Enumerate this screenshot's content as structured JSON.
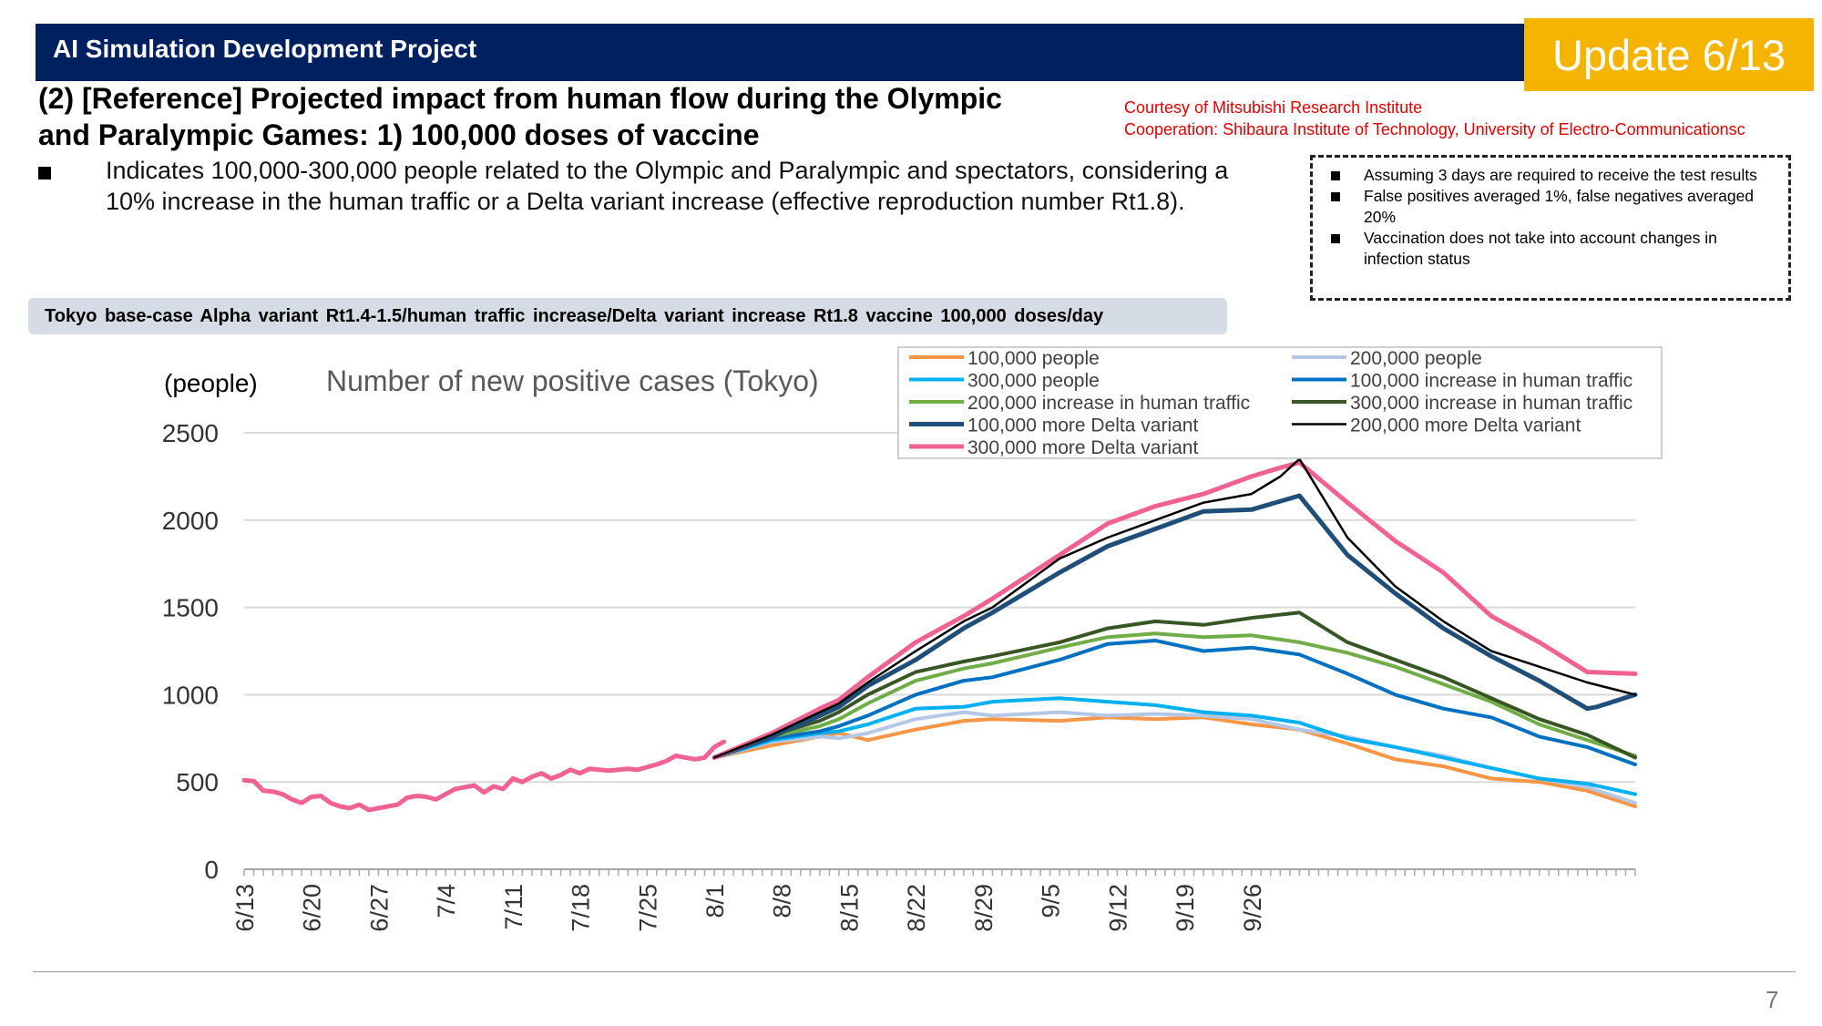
{
  "header": {
    "project_title": "AI Simulation Development Project",
    "update_badge": "Update 6/13",
    "subtitle_line1": "(2) [Reference] Projected impact from human flow during the Olympic",
    "subtitle_line2": "and Paralympic Games: 1) 100,000 doses of vaccine",
    "courtesy_line1": "Courtesy of Mitsubishi Research Institute",
    "courtesy_line2": "Cooperation: Shibaura Institute of Technology, University of Electro-Communicationsc"
  },
  "description": "Indicates 100,000-300,000 people related to the Olympic and Paralympic and spectators, considering a 10% increase in the human traffic or a Delta variant increase (effective reproduction number Rt1.8).",
  "notes": [
    "Assuming 3 days are required to receive the test results",
    "False positives averaged 1%, false negatives averaged 20%",
    "Vaccination does not take into account changes in infection status"
  ],
  "banner": "Tokyo base-case Alpha variant Rt1.4-1.5/human traffic increase/Delta variant increase Rt1.8 vaccine 100,000 doses/day",
  "page_number": "7",
  "colors": {
    "header_bg": "#002060",
    "update_bg": "#f5b400",
    "courtesy_text": "#e00000",
    "base_line": "#f06292"
  },
  "chart_data": {
    "type": "line",
    "title": "Number of new positive cases (Tokyo)",
    "ylabel": "(people)",
    "xlabel": "",
    "ylim": [
      0,
      2500
    ],
    "yticks": [
      "0",
      "500",
      "1000",
      "1500",
      "2000",
      "2500"
    ],
    "xtick_labels": [
      "6/13",
      "6/20",
      "6/27",
      "7/4",
      "7/11",
      "7/18",
      "7/25",
      "8/1",
      "8/8",
      "8/15",
      "8/22",
      "8/29",
      "9/5",
      "9/12",
      "9/19",
      "9/26"
    ],
    "grid": true,
    "legend_position": "top-right",
    "x_start": "6/13",
    "baseline": [
      510,
      505,
      450,
      445,
      430,
      400,
      380,
      415,
      420,
      380,
      360,
      350,
      370,
      340,
      350,
      360,
      370,
      410,
      420,
      415,
      400,
      430,
      460,
      470,
      480,
      440,
      475,
      460,
      520,
      500,
      530,
      550,
      520,
      540,
      570,
      550,
      575,
      570,
      565,
      570,
      575,
      570,
      585,
      600,
      620,
      650,
      640,
      630,
      640,
      700,
      730
    ],
    "series": [
      {
        "name": "100,000 people",
        "color": "#f79646",
        "width": 4,
        "points": [
          [
            49,
            640
          ],
          [
            55,
            710
          ],
          [
            60,
            760
          ],
          [
            62,
            780
          ],
          [
            65,
            740
          ],
          [
            70,
            800
          ],
          [
            75,
            850
          ],
          [
            78,
            860
          ],
          [
            85,
            850
          ],
          [
            90,
            870
          ],
          [
            95,
            860
          ],
          [
            100,
            870
          ],
          [
            105,
            830
          ],
          [
            110,
            800
          ],
          [
            115,
            720
          ],
          [
            120,
            630
          ],
          [
            125,
            590
          ],
          [
            130,
            520
          ],
          [
            135,
            500
          ],
          [
            140,
            450
          ],
          [
            145,
            360
          ]
        ]
      },
      {
        "name": "200,000 people",
        "color": "#b4c7e7",
        "width": 4,
        "points": [
          [
            49,
            640
          ],
          [
            55,
            730
          ],
          [
            60,
            760
          ],
          [
            62,
            750
          ],
          [
            65,
            780
          ],
          [
            70,
            860
          ],
          [
            75,
            900
          ],
          [
            78,
            880
          ],
          [
            85,
            900
          ],
          [
            90,
            880
          ],
          [
            95,
            890
          ],
          [
            100,
            880
          ],
          [
            105,
            860
          ],
          [
            110,
            800
          ],
          [
            115,
            760
          ],
          [
            120,
            700
          ],
          [
            125,
            650
          ],
          [
            130,
            580
          ],
          [
            135,
            520
          ],
          [
            140,
            470
          ],
          [
            145,
            380
          ]
        ]
      },
      {
        "name": "300,000 people",
        "color": "#00b0f0",
        "width": 4,
        "points": [
          [
            49,
            640
          ],
          [
            55,
            740
          ],
          [
            60,
            780
          ],
          [
            62,
            790
          ],
          [
            65,
            830
          ],
          [
            70,
            920
          ],
          [
            75,
            930
          ],
          [
            78,
            960
          ],
          [
            85,
            980
          ],
          [
            90,
            960
          ],
          [
            95,
            940
          ],
          [
            100,
            900
          ],
          [
            105,
            880
          ],
          [
            110,
            840
          ],
          [
            115,
            750
          ],
          [
            120,
            700
          ],
          [
            125,
            640
          ],
          [
            130,
            580
          ],
          [
            135,
            520
          ],
          [
            140,
            490
          ],
          [
            145,
            430
          ]
        ]
      },
      {
        "name": "100,000 increase in human traffic",
        "color": "#0070c0",
        "width": 4,
        "points": [
          [
            49,
            640
          ],
          [
            55,
            750
          ],
          [
            60,
            790
          ],
          [
            62,
            820
          ],
          [
            65,
            880
          ],
          [
            70,
            1000
          ],
          [
            75,
            1080
          ],
          [
            78,
            1100
          ],
          [
            85,
            1200
          ],
          [
            90,
            1290
          ],
          [
            95,
            1310
          ],
          [
            100,
            1250
          ],
          [
            105,
            1270
          ],
          [
            110,
            1230
          ],
          [
            115,
            1120
          ],
          [
            120,
            1000
          ],
          [
            125,
            920
          ],
          [
            130,
            870
          ],
          [
            135,
            760
          ],
          [
            140,
            700
          ],
          [
            145,
            600
          ]
        ]
      },
      {
        "name": "200,000 increase in human traffic",
        "color": "#70ad47",
        "width": 4,
        "points": [
          [
            49,
            640
          ],
          [
            55,
            760
          ],
          [
            60,
            820
          ],
          [
            62,
            860
          ],
          [
            65,
            950
          ],
          [
            70,
            1080
          ],
          [
            75,
            1150
          ],
          [
            78,
            1180
          ],
          [
            85,
            1270
          ],
          [
            90,
            1330
          ],
          [
            95,
            1350
          ],
          [
            100,
            1330
          ],
          [
            105,
            1340
          ],
          [
            110,
            1300
          ],
          [
            115,
            1240
          ],
          [
            120,
            1160
          ],
          [
            125,
            1060
          ],
          [
            130,
            960
          ],
          [
            135,
            830
          ],
          [
            140,
            740
          ],
          [
            145,
            650
          ]
        ]
      },
      {
        "name": "300,000 increase in human traffic",
        "color": "#375623",
        "width": 4,
        "points": [
          [
            49,
            640
          ],
          [
            55,
            770
          ],
          [
            60,
            850
          ],
          [
            62,
            900
          ],
          [
            65,
            1000
          ],
          [
            70,
            1130
          ],
          [
            75,
            1190
          ],
          [
            78,
            1220
          ],
          [
            85,
            1300
          ],
          [
            90,
            1380
          ],
          [
            95,
            1420
          ],
          [
            100,
            1400
          ],
          [
            105,
            1440
          ],
          [
            110,
            1470
          ],
          [
            115,
            1300
          ],
          [
            120,
            1200
          ],
          [
            125,
            1100
          ],
          [
            130,
            980
          ],
          [
            135,
            860
          ],
          [
            140,
            770
          ],
          [
            145,
            640
          ]
        ]
      },
      {
        "name": "100,000 more Delta variant",
        "color": "#1f4e79",
        "width": 5,
        "points": [
          [
            49,
            640
          ],
          [
            55,
            760
          ],
          [
            60,
            880
          ],
          [
            62,
            930
          ],
          [
            65,
            1050
          ],
          [
            70,
            1200
          ],
          [
            75,
            1380
          ],
          [
            78,
            1470
          ],
          [
            85,
            1700
          ],
          [
            90,
            1850
          ],
          [
            95,
            1950
          ],
          [
            100,
            2050
          ],
          [
            105,
            2060
          ],
          [
            110,
            2140
          ],
          [
            115,
            1800
          ],
          [
            120,
            1580
          ],
          [
            125,
            1380
          ],
          [
            130,
            1220
          ],
          [
            135,
            1080
          ],
          [
            140,
            920
          ],
          [
            141,
            930
          ],
          [
            145,
            1000
          ]
        ]
      },
      {
        "name": "200,000 more Delta variant",
        "color": "#000000",
        "width": 2.5,
        "points": [
          [
            49,
            640
          ],
          [
            55,
            770
          ],
          [
            60,
            900
          ],
          [
            62,
            950
          ],
          [
            65,
            1070
          ],
          [
            70,
            1250
          ],
          [
            75,
            1420
          ],
          [
            78,
            1500
          ],
          [
            85,
            1780
          ],
          [
            90,
            1900
          ],
          [
            95,
            2000
          ],
          [
            100,
            2100
          ],
          [
            105,
            2150
          ],
          [
            108,
            2250
          ],
          [
            110,
            2350
          ],
          [
            115,
            1900
          ],
          [
            120,
            1620
          ],
          [
            125,
            1420
          ],
          [
            130,
            1250
          ],
          [
            135,
            1160
          ],
          [
            140,
            1070
          ],
          [
            145,
            1000
          ]
        ]
      },
      {
        "name": "300,000 more Delta variant",
        "color": "#f06292",
        "width": 5,
        "points": [
          [
            49,
            640
          ],
          [
            55,
            780
          ],
          [
            60,
            920
          ],
          [
            62,
            970
          ],
          [
            65,
            1100
          ],
          [
            70,
            1300
          ],
          [
            75,
            1450
          ],
          [
            78,
            1550
          ],
          [
            85,
            1800
          ],
          [
            90,
            1980
          ],
          [
            95,
            2080
          ],
          [
            100,
            2150
          ],
          [
            105,
            2250
          ],
          [
            108,
            2300
          ],
          [
            110,
            2330
          ],
          [
            115,
            2100
          ],
          [
            120,
            1880
          ],
          [
            125,
            1700
          ],
          [
            130,
            1450
          ],
          [
            135,
            1300
          ],
          [
            140,
            1130
          ],
          [
            145,
            1120
          ]
        ]
      }
    ]
  }
}
